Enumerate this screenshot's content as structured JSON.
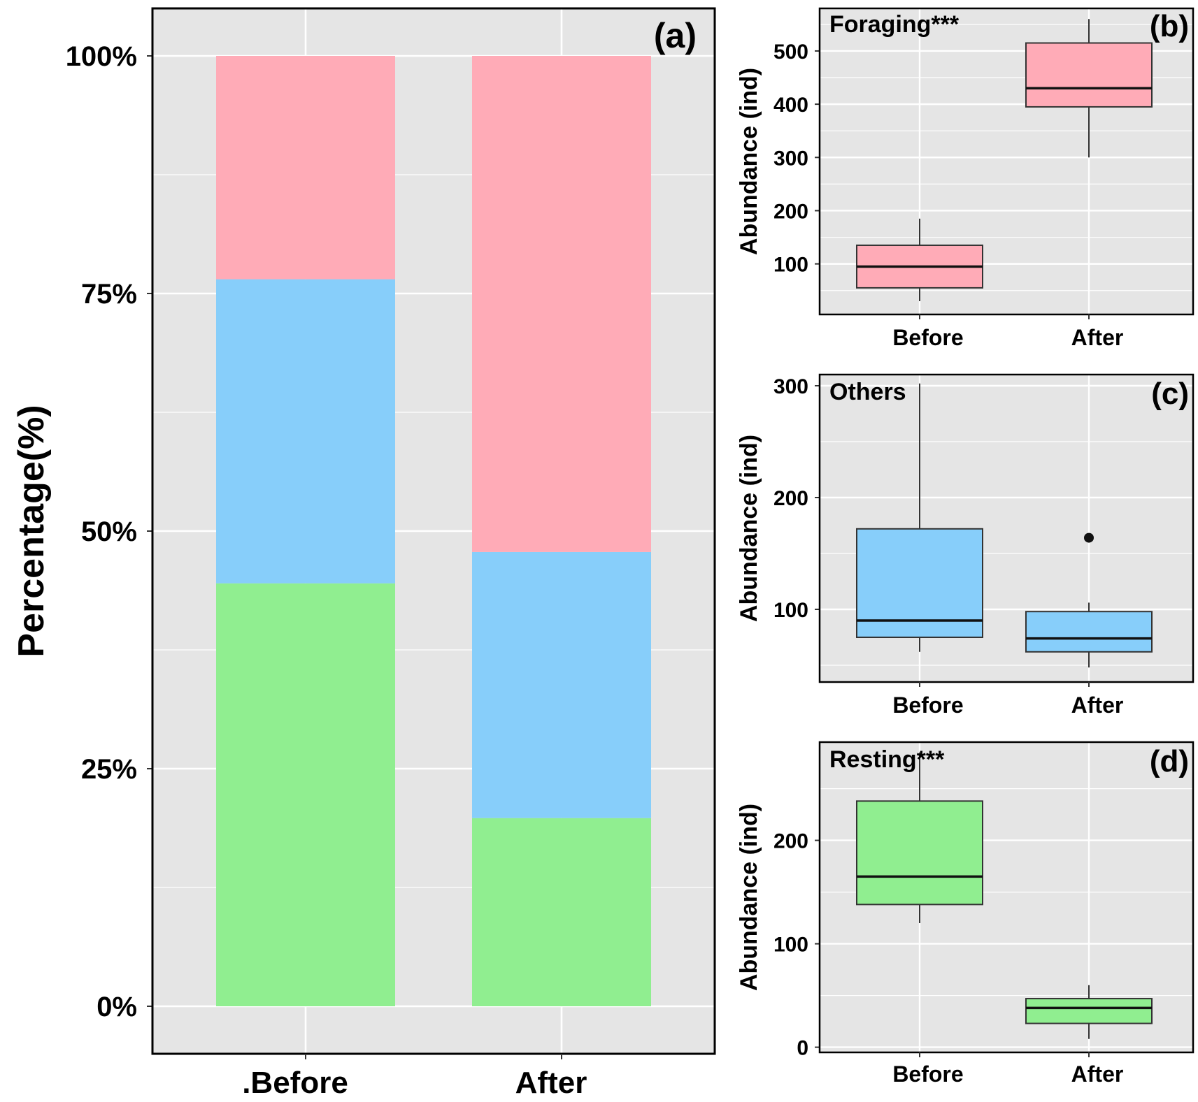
{
  "colors": {
    "foraging": "#ffabb7",
    "others": "#87cefa",
    "resting": "#90ee90",
    "panel_bg": "#e5e5e5",
    "grid": "#ffffff",
    "frame": "#000000"
  },
  "chart_data": [
    {
      "type": "bar",
      "stacked": true,
      "panel_label": "(a)",
      "ylabel": "Percentage(%)",
      "xlabel": "",
      "categories": [
        ".Before",
        "After"
      ],
      "ylim": [
        -5,
        105
      ],
      "yticks": [
        0,
        25,
        50,
        75,
        100
      ],
      "ytick_labels": [
        "0%",
        "25%",
        "50%",
        "75%",
        "100%"
      ],
      "series": [
        {
          "name": "Resting",
          "color_key": "resting",
          "values": [
            44.5,
            19.8
          ]
        },
        {
          "name": "Others",
          "color_key": "others",
          "values": [
            32.0,
            28.0
          ]
        },
        {
          "name": "Foraging",
          "color_key": "foraging",
          "values": [
            23.5,
            52.2
          ]
        }
      ],
      "grid": true
    },
    {
      "type": "box",
      "panel_label": "(b)",
      "title": "Foraging***",
      "ylabel": "Abundance (ind)",
      "categories": [
        "Before",
        "After"
      ],
      "ylim": [
        5,
        580
      ],
      "yticks": [
        100,
        200,
        300,
        400,
        500
      ],
      "fill_key": "foraging",
      "boxes": [
        {
          "min": 30,
          "q1": 55,
          "median": 95,
          "q3": 135,
          "max": 185,
          "outliers": []
        },
        {
          "min": 300,
          "q1": 395,
          "median": 430,
          "q3": 515,
          "max": 560,
          "outliers": []
        }
      ],
      "grid": true
    },
    {
      "type": "box",
      "panel_label": "(c)",
      "title": "Others",
      "ylabel": "Abundance (ind)",
      "categories": [
        "Before",
        "After"
      ],
      "ylim": [
        35,
        310
      ],
      "yticks": [
        100,
        200,
        300
      ],
      "fill_key": "others",
      "boxes": [
        {
          "min": 62,
          "q1": 75,
          "median": 90,
          "q3": 172,
          "max": 302,
          "outliers": []
        },
        {
          "min": 48,
          "q1": 62,
          "median": 74,
          "q3": 98,
          "max": 106,
          "outliers": [
            164
          ]
        }
      ],
      "grid": true
    },
    {
      "type": "box",
      "panel_label": "(d)",
      "title": "Resting***",
      "ylabel": "Abundance (ind)",
      "categories": [
        "Before",
        "After"
      ],
      "ylim": [
        -5,
        295
      ],
      "yticks": [
        0,
        100,
        200
      ],
      "fill_key": "resting",
      "boxes": [
        {
          "min": 120,
          "q1": 138,
          "median": 165,
          "q3": 238,
          "max": 285,
          "outliers": []
        },
        {
          "min": 8,
          "q1": 23,
          "median": 38,
          "q3": 47,
          "max": 60,
          "outliers": []
        }
      ],
      "grid": true
    }
  ]
}
